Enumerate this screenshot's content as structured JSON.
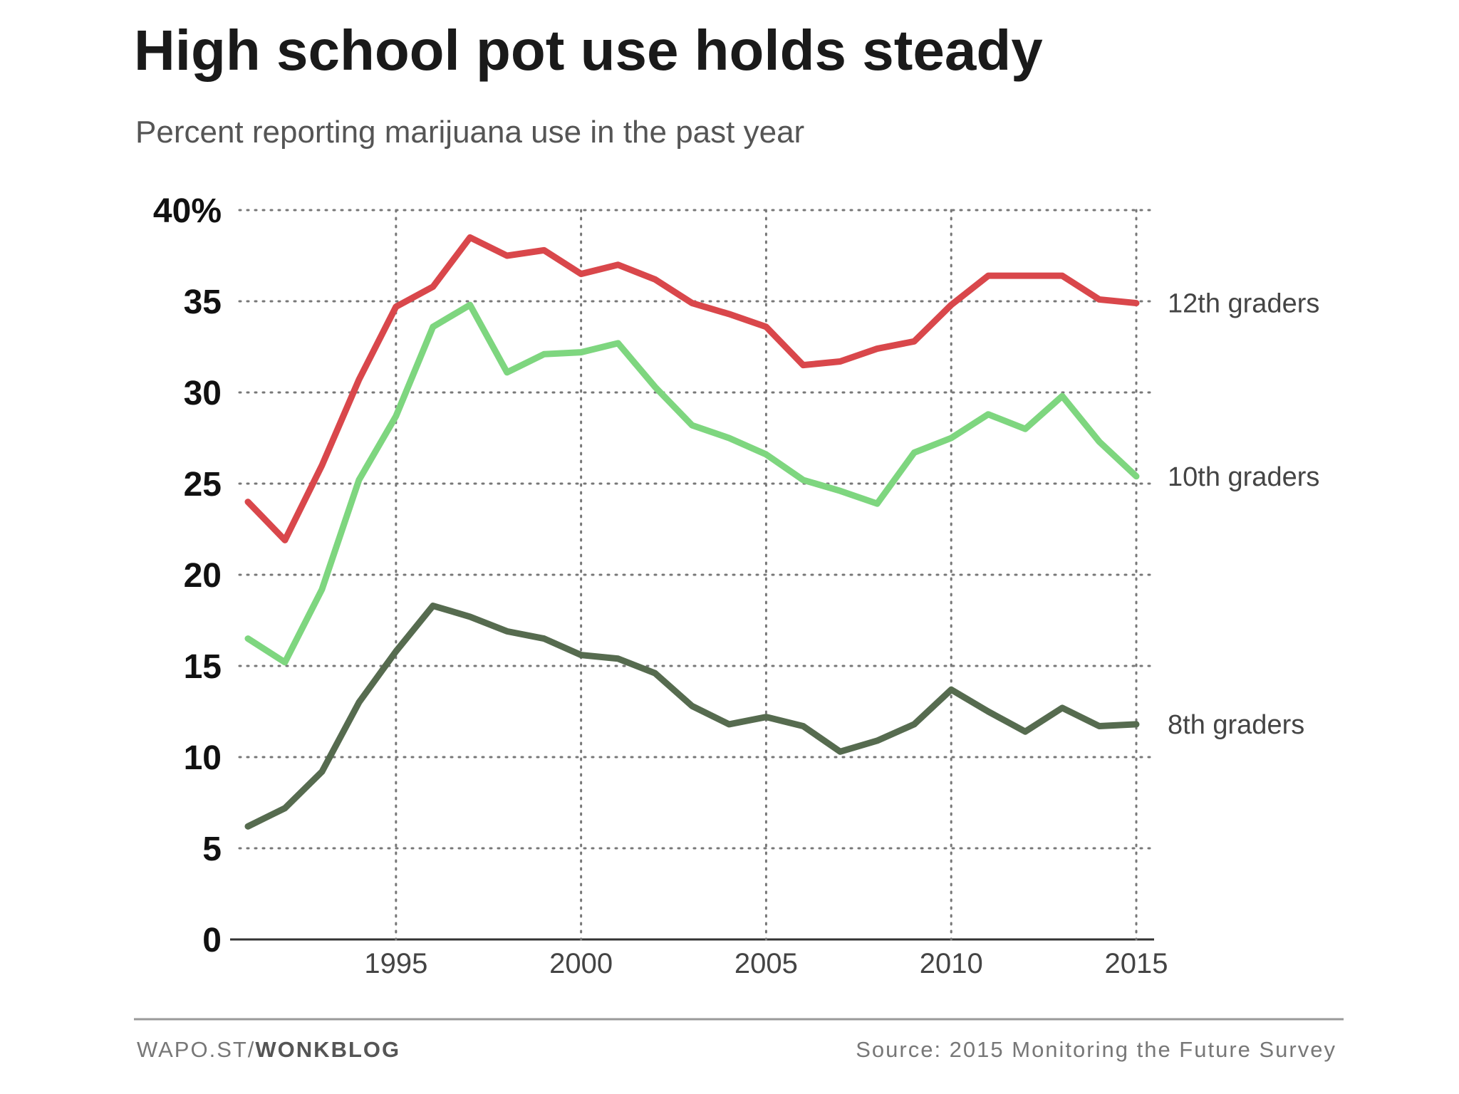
{
  "chart_data": {
    "type": "line",
    "title": "High school pot use holds steady",
    "subtitle": "Percent reporting marijuana use in the past year",
    "xlabel": "",
    "ylabel": "",
    "x": [
      1991,
      1992,
      1993,
      1994,
      1995,
      1996,
      1997,
      1998,
      1999,
      2000,
      2001,
      2002,
      2003,
      2004,
      2005,
      2006,
      2007,
      2008,
      2009,
      2010,
      2011,
      2012,
      2013,
      2014,
      2015
    ],
    "xlim": [
      1991,
      2015
    ],
    "ylim": [
      0,
      40
    ],
    "x_ticks": [
      "1995",
      "2000",
      "2005",
      "2010",
      "2015"
    ],
    "x_tick_values": [
      1995,
      2000,
      2005,
      2010,
      2015
    ],
    "y_ticks": [
      "0",
      "5",
      "10",
      "15",
      "20",
      "25",
      "30",
      "35",
      "40%"
    ],
    "y_tick_values": [
      0,
      5,
      10,
      15,
      20,
      25,
      30,
      35,
      40
    ],
    "grid": true,
    "legend": "direct labels at right",
    "series": [
      {
        "name": "12th graders",
        "color": "#d9474b",
        "values": [
          24.0,
          21.9,
          26.0,
          30.7,
          34.7,
          35.8,
          38.5,
          37.5,
          37.8,
          36.5,
          37.0,
          36.2,
          34.9,
          34.3,
          33.6,
          31.5,
          31.7,
          32.4,
          32.8,
          34.8,
          36.4,
          36.4,
          36.4,
          35.1,
          34.9
        ]
      },
      {
        "name": "10th graders",
        "color": "#7ed67f",
        "values": [
          16.5,
          15.2,
          19.2,
          25.2,
          28.7,
          33.6,
          34.8,
          31.1,
          32.1,
          32.2,
          32.7,
          30.3,
          28.2,
          27.5,
          26.6,
          25.2,
          24.6,
          23.9,
          26.7,
          27.5,
          28.8,
          28.0,
          29.8,
          27.3,
          25.4
        ]
      },
      {
        "name": "8th graders",
        "color": "#566b4f",
        "values": [
          6.2,
          7.2,
          9.2,
          13.0,
          15.8,
          18.3,
          17.7,
          16.9,
          16.5,
          15.6,
          15.4,
          14.6,
          12.8,
          11.8,
          12.2,
          11.7,
          10.3,
          10.9,
          11.8,
          13.7,
          12.5,
          11.4,
          12.7,
          11.7,
          11.8
        ]
      }
    ]
  },
  "footer": {
    "credit_prefix": "WAPO.ST/",
    "credit_bold": "WONKBLOG",
    "source": "Source: 2015 Monitoring the Future Survey"
  }
}
